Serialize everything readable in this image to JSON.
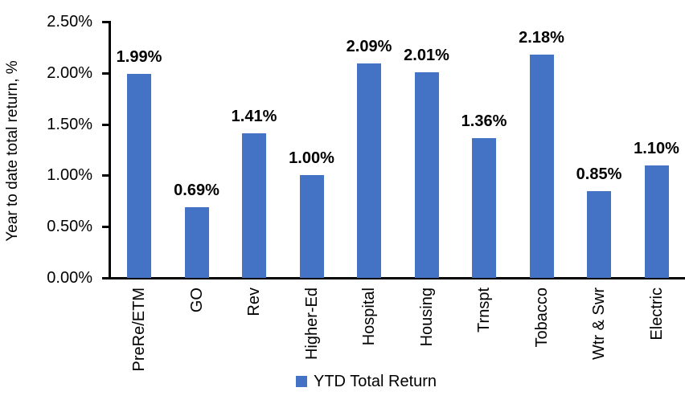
{
  "chart_data": {
    "type": "bar",
    "title": "",
    "xlabel": "",
    "ylabel": "Year to date total return, %",
    "categories": [
      "PreRe/ETM",
      "GO",
      "Rev",
      "Higher-Ed",
      "Hospital",
      "Housing",
      "Trnspt",
      "Tobacco",
      "Wtr & Swr",
      "Electric"
    ],
    "values": [
      1.99,
      0.69,
      1.41,
      1.0,
      2.09,
      2.01,
      1.36,
      2.18,
      0.85,
      1.1
    ],
    "value_labels": [
      "1.99%",
      "0.69%",
      "1.41%",
      "1.00%",
      "2.09%",
      "2.01%",
      "1.36%",
      "2.18%",
      "0.85%",
      "1.10%"
    ],
    "ylim": [
      0,
      2.5
    ],
    "ytick_values": [
      0.0,
      0.5,
      1.0,
      1.5,
      2.0,
      2.5
    ],
    "ytick_labels": [
      "0.00%",
      "0.50%",
      "1.00%",
      "1.50%",
      "2.00%",
      "2.50%"
    ],
    "grid": false,
    "legend": {
      "position": "bottom",
      "entries": [
        {
          "label": "YTD Total Return",
          "color": "#4472C4"
        }
      ]
    },
    "colors": {
      "bar": "#4472C4",
      "axis": "#000000",
      "text": "#000000",
      "background": "#FFFFFF"
    }
  }
}
